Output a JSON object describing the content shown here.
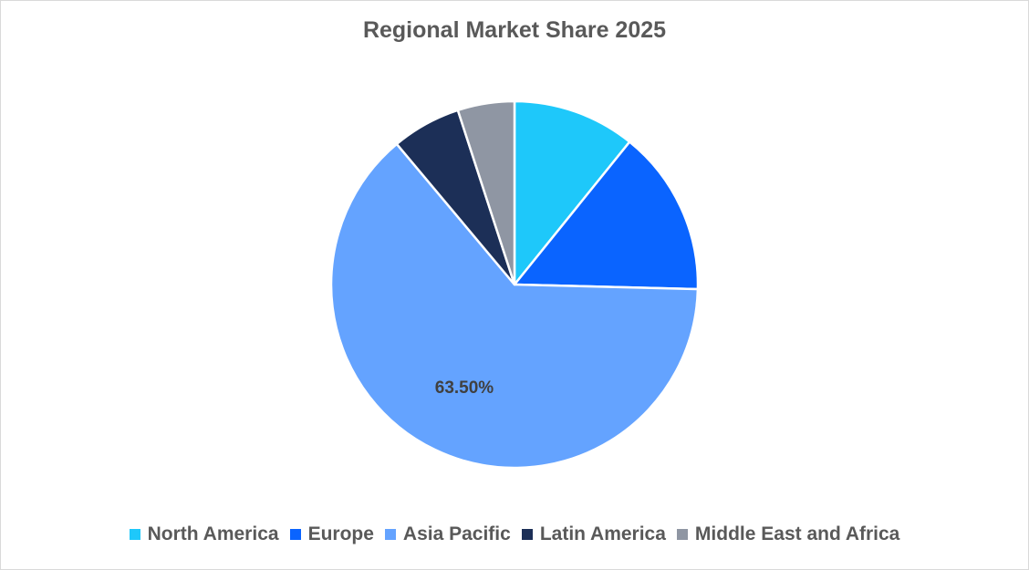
{
  "chart_data": {
    "type": "pie",
    "title": "Regional Market Share 2025",
    "categories": [
      "North America",
      "Europe",
      "Asia Pacific",
      "Latin America",
      "Middle East and Africa"
    ],
    "values": [
      10.8,
      14.6,
      63.5,
      6.1,
      5.0
    ],
    "colors": [
      "#1ec8fa",
      "#0a64ff",
      "#64a3ff",
      "#1c2f57",
      "#8f96a3"
    ],
    "data_labels": [
      "",
      "",
      "63.50%",
      "",
      ""
    ],
    "legend_position": "bottom"
  }
}
